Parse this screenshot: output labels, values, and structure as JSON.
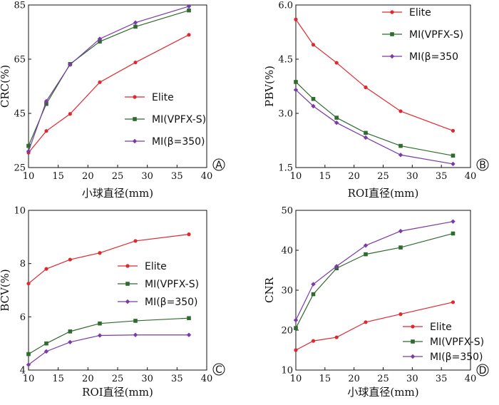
{
  "chart_data": [
    {
      "type": "line",
      "panel_label": "A",
      "xlabel": "小球直径(mm)",
      "ylabel": "CRC(%)",
      "xlim": [
        10,
        40
      ],
      "xticks": [
        10,
        15,
        20,
        25,
        30,
        35,
        40
      ],
      "ylim": [
        25,
        85
      ],
      "yticks": [
        25,
        45,
        65,
        85
      ],
      "legend_position": "bottom-right",
      "series": [
        {
          "name": "Elite",
          "color": "#e0282e",
          "marker": "circle",
          "x": [
            10,
            13,
            17,
            22,
            28,
            37
          ],
          "y": [
            30.5,
            38.5,
            44.8,
            56.5,
            63.8,
            74.0
          ]
        },
        {
          "name": "MI(VPFX-S)",
          "color": "#2e6b2e",
          "marker": "square",
          "x": [
            10,
            13,
            17,
            22,
            28,
            37
          ],
          "y": [
            33.0,
            48.5,
            63.2,
            71.5,
            77.0,
            83.0
          ]
        },
        {
          "name": "MI(β=350)",
          "color": "#7a3aa8",
          "marker": "diamond",
          "x": [
            10,
            13,
            17,
            22,
            28,
            37
          ],
          "y": [
            31.0,
            49.5,
            63.0,
            72.5,
            78.5,
            84.5
          ]
        }
      ]
    },
    {
      "type": "line",
      "panel_label": "B",
      "xlabel": "ROI直径(mm)",
      "ylabel": "PBV(%)",
      "xlim": [
        10,
        40
      ],
      "xticks": [
        10,
        15,
        20,
        25,
        30,
        35,
        40
      ],
      "ylim": [
        1.5,
        6.0
      ],
      "yticks": [
        "1.5",
        "3.0",
        "4.5",
        "6.0"
      ],
      "legend_position": "top-right",
      "series": [
        {
          "name": "Elite",
          "color": "#e0282e",
          "marker": "circle",
          "x": [
            10,
            13,
            17,
            22,
            28,
            37
          ],
          "y": [
            5.6,
            4.9,
            4.4,
            3.72,
            3.06,
            2.52
          ]
        },
        {
          "name": "MI(VPFX-S)",
          "color": "#2e6b2e",
          "marker": "square",
          "x": [
            10,
            13,
            17,
            22,
            28,
            37
          ],
          "y": [
            3.87,
            3.4,
            2.88,
            2.46,
            2.1,
            1.83
          ]
        },
        {
          "name": "MI(β=350",
          "color": "#7a3aa8",
          "marker": "diamond",
          "x": [
            10,
            13,
            17,
            22,
            28,
            37
          ],
          "y": [
            3.65,
            3.2,
            2.74,
            2.33,
            1.85,
            1.6
          ]
        }
      ]
    },
    {
      "type": "line",
      "panel_label": "C",
      "xlabel": "ROI直径(mm)",
      "ylabel": "BCV(%)",
      "xlim": [
        10,
        40
      ],
      "xticks": [
        10,
        15,
        20,
        25,
        30,
        35,
        40
      ],
      "ylim": [
        4,
        10
      ],
      "yticks": [
        4,
        6,
        8,
        10
      ],
      "legend_position": "center-right",
      "series": [
        {
          "name": "Elite",
          "color": "#e0282e",
          "marker": "circle",
          "x": [
            10,
            13,
            17,
            22,
            28,
            37
          ],
          "y": [
            7.25,
            7.8,
            8.15,
            8.4,
            8.85,
            9.1
          ]
        },
        {
          "name": "MI(VPFX-S)",
          "color": "#2e6b2e",
          "marker": "square",
          "x": [
            10,
            13,
            17,
            22,
            28,
            37
          ],
          "y": [
            4.6,
            5.0,
            5.45,
            5.75,
            5.85,
            5.95
          ]
        },
        {
          "name": "MI(β=350)",
          "color": "#7a3aa8",
          "marker": "diamond",
          "x": [
            10,
            13,
            17,
            22,
            28,
            37
          ],
          "y": [
            4.2,
            4.7,
            5.05,
            5.3,
            5.32,
            5.32
          ]
        }
      ]
    },
    {
      "type": "line",
      "panel_label": "D",
      "xlabel": "小球直径(mm)",
      "ylabel": "CNR",
      "xlim": [
        10,
        40
      ],
      "xticks": [
        10,
        15,
        20,
        25,
        30,
        35,
        40
      ],
      "ylim": [
        10,
        50
      ],
      "yticks": [
        10,
        20,
        30,
        40,
        50
      ],
      "legend_position": "bottom-right",
      "series": [
        {
          "name": "Elite",
          "color": "#e0282e",
          "marker": "circle",
          "x": [
            10,
            13,
            17,
            22,
            28,
            37
          ],
          "y": [
            15.0,
            17.3,
            18.2,
            22.0,
            24.0,
            27.0
          ]
        },
        {
          "name": "MI(VPFX-S)",
          "color": "#2e6b2e",
          "marker": "square",
          "x": [
            10,
            13,
            17,
            22,
            28,
            37
          ],
          "y": [
            20.5,
            29.0,
            35.5,
            39.0,
            40.7,
            44.2
          ]
        },
        {
          "name": "MI(β=350)",
          "color": "#7a3aa8",
          "marker": "diamond",
          "x": [
            10,
            13,
            17,
            22,
            28,
            37
          ],
          "y": [
            22.5,
            31.5,
            36.0,
            41.2,
            44.8,
            47.2
          ]
        }
      ]
    }
  ]
}
